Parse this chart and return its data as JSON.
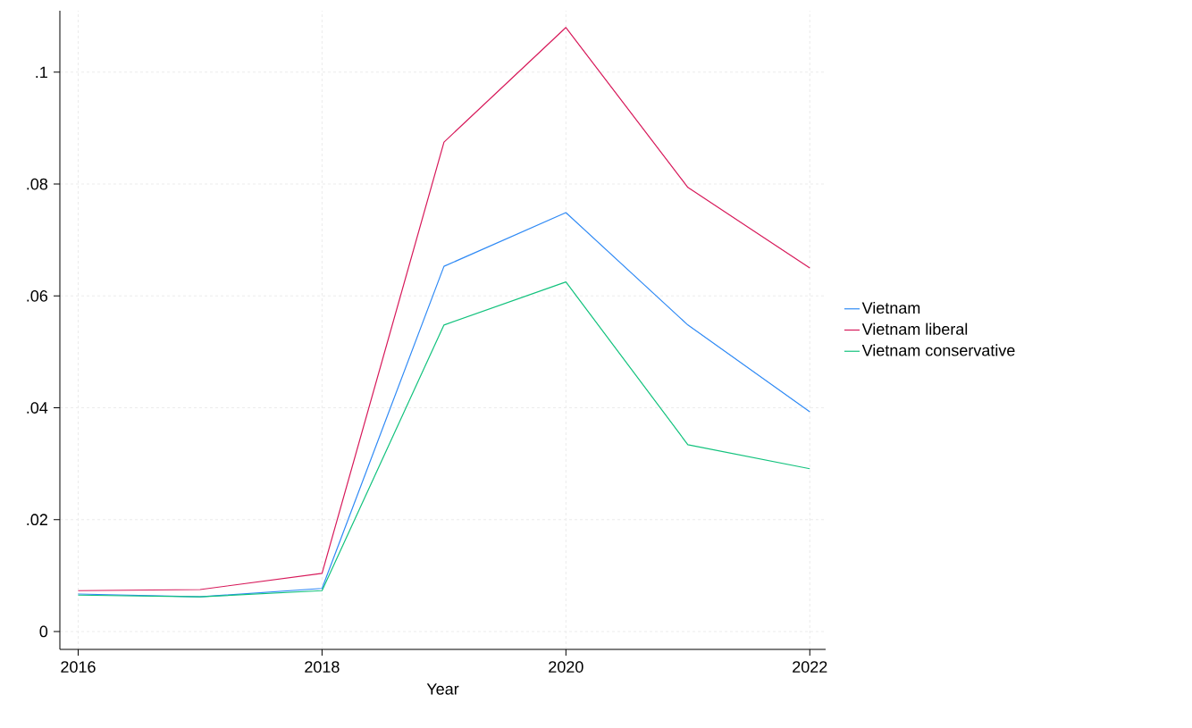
{
  "chart_data": {
    "type": "line",
    "xlabel": "Year",
    "x": [
      2016,
      2017,
      2018,
      2019,
      2020,
      2021,
      2022
    ],
    "series": [
      {
        "name": "Vietnam",
        "color": "#2f8af5",
        "values": [
          0.0067,
          0.0062,
          0.0077,
          0.0653,
          0.0749,
          0.0548,
          0.0393
        ]
      },
      {
        "name": "Vietnam liberal",
        "color": "#d7195a",
        "values": [
          0.0073,
          0.0075,
          0.0104,
          0.0875,
          0.108,
          0.0794,
          0.065
        ]
      },
      {
        "name": "Vietnam conservative",
        "color": "#12c27d",
        "values": [
          0.0065,
          0.0062,
          0.0073,
          0.0548,
          0.0625,
          0.0334,
          0.0291
        ]
      }
    ],
    "xlim": [
      2015.85,
      2022.13
    ],
    "ylim": [
      -0.0032,
      0.111
    ],
    "xticks": [
      2016,
      2018,
      2020,
      2022
    ],
    "yticks": [
      0,
      {
        "value": 0.02,
        "label": ".02"
      },
      {
        "value": 0.04,
        "label": ".04"
      },
      {
        "value": 0.06,
        "label": ".06"
      },
      {
        "value": 0.08,
        "label": ".08"
      },
      {
        "value": 0.1,
        "label": ".1"
      }
    ],
    "grid": true,
    "legend": "right",
    "marker": "none",
    "line_style": "solid"
  }
}
